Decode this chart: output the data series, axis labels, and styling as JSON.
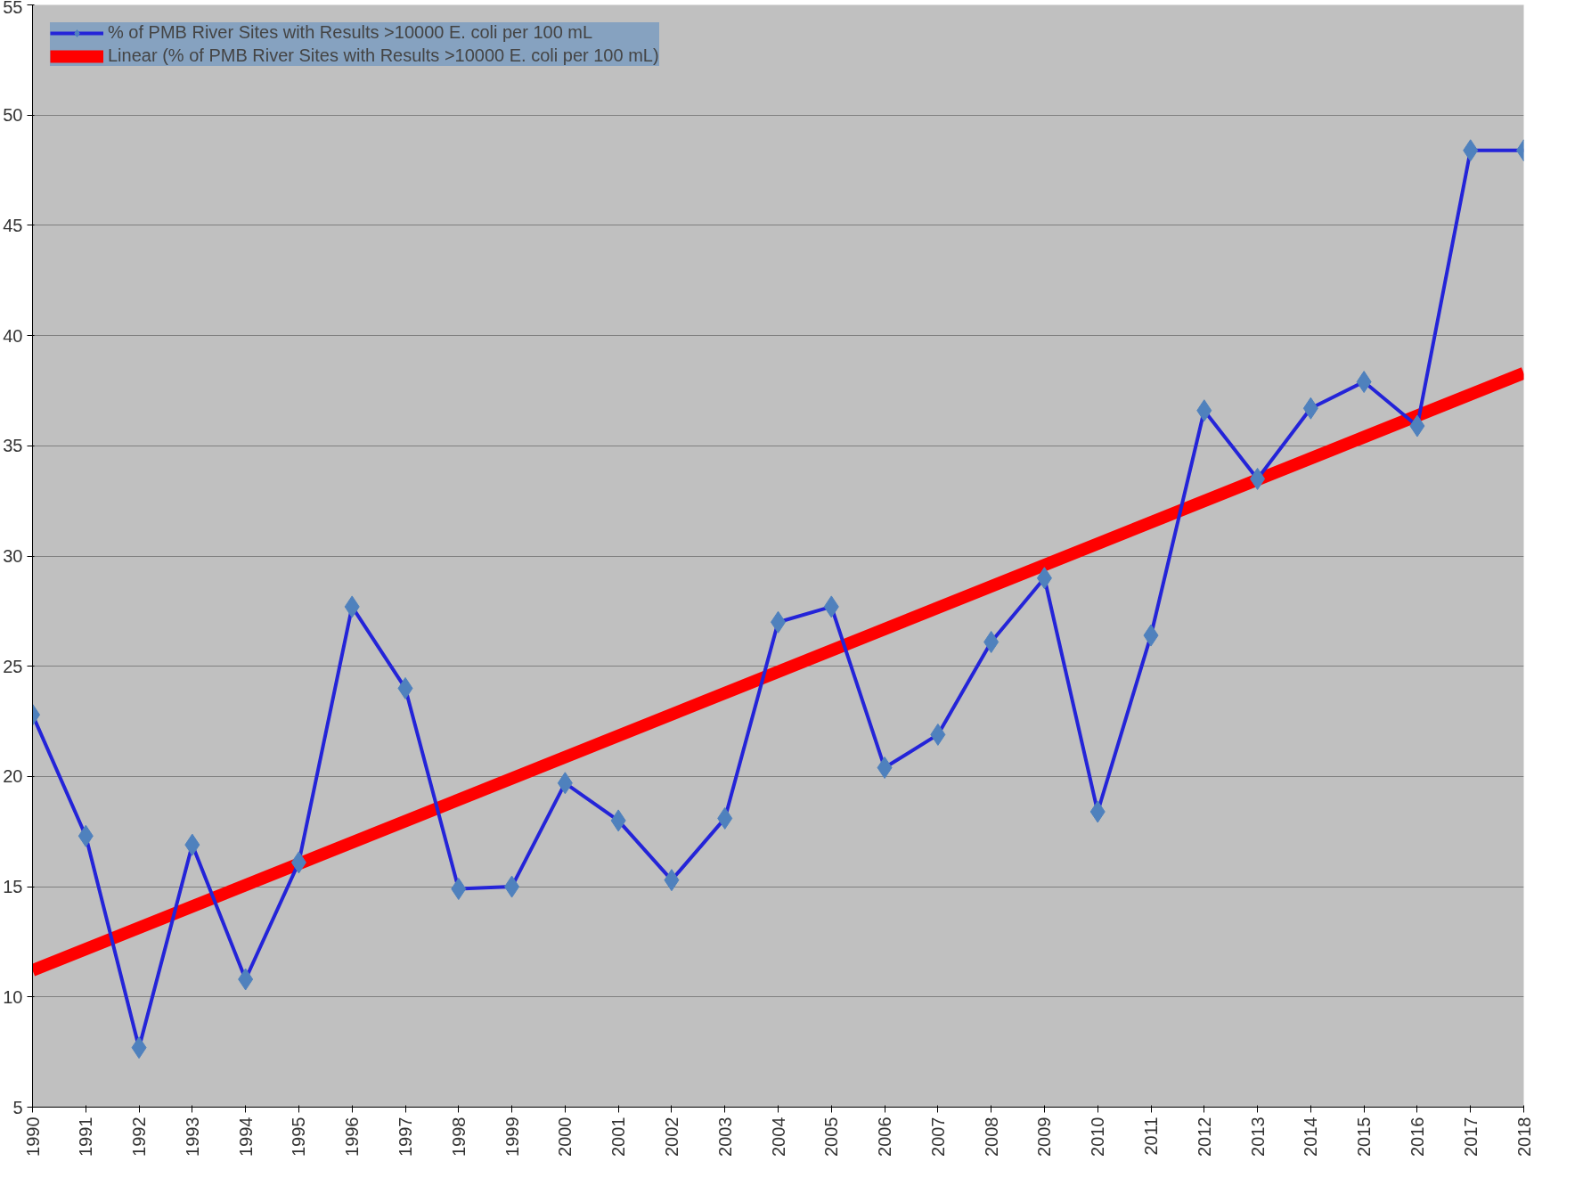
{
  "chart_data": {
    "type": "line",
    "x": [
      1990,
      1991,
      1992,
      1993,
      1994,
      1995,
      1996,
      1997,
      1998,
      1999,
      2000,
      2001,
      2002,
      2003,
      2004,
      2005,
      2006,
      2007,
      2008,
      2009,
      2010,
      2011,
      2012,
      2013,
      2014,
      2015,
      2016,
      2017,
      2018
    ],
    "series": [
      {
        "name": "% of PMB River Sites with Results >10000 E. coli per 100 mL",
        "color": "#2424d8",
        "marker": "diamond",
        "values": [
          22.8,
          17.3,
          7.7,
          16.9,
          10.8,
          16.1,
          27.7,
          24.0,
          14.9,
          15.0,
          19.7,
          18.0,
          15.3,
          18.1,
          27.0,
          27.7,
          20.4,
          21.9,
          26.1,
          29.0,
          18.4,
          26.4,
          36.6,
          33.5,
          36.7,
          37.9,
          35.9,
          48.4,
          48.4
        ]
      },
      {
        "name": "Linear (% of PMB River Sites with Results >10000 E. coli per 100 mL)",
        "color": "#ff0000",
        "marker": "none",
        "x": [
          1990,
          2018
        ],
        "values": [
          11.2,
          38.3
        ]
      }
    ],
    "xlim": [
      1990,
      2018
    ],
    "xticks": [
      1990,
      1991,
      1992,
      1993,
      1994,
      1995,
      1996,
      1997,
      1998,
      1999,
      2000,
      2001,
      2002,
      2003,
      2004,
      2005,
      2006,
      2007,
      2008,
      2009,
      2010,
      2011,
      2012,
      2013,
      2014,
      2015,
      2016,
      2017,
      2018
    ],
    "ylim": [
      5,
      55
    ],
    "yticks": [
      5,
      10,
      15,
      20,
      25,
      30,
      35,
      40,
      45,
      50,
      55
    ],
    "grid": "y",
    "legend": "top left"
  }
}
